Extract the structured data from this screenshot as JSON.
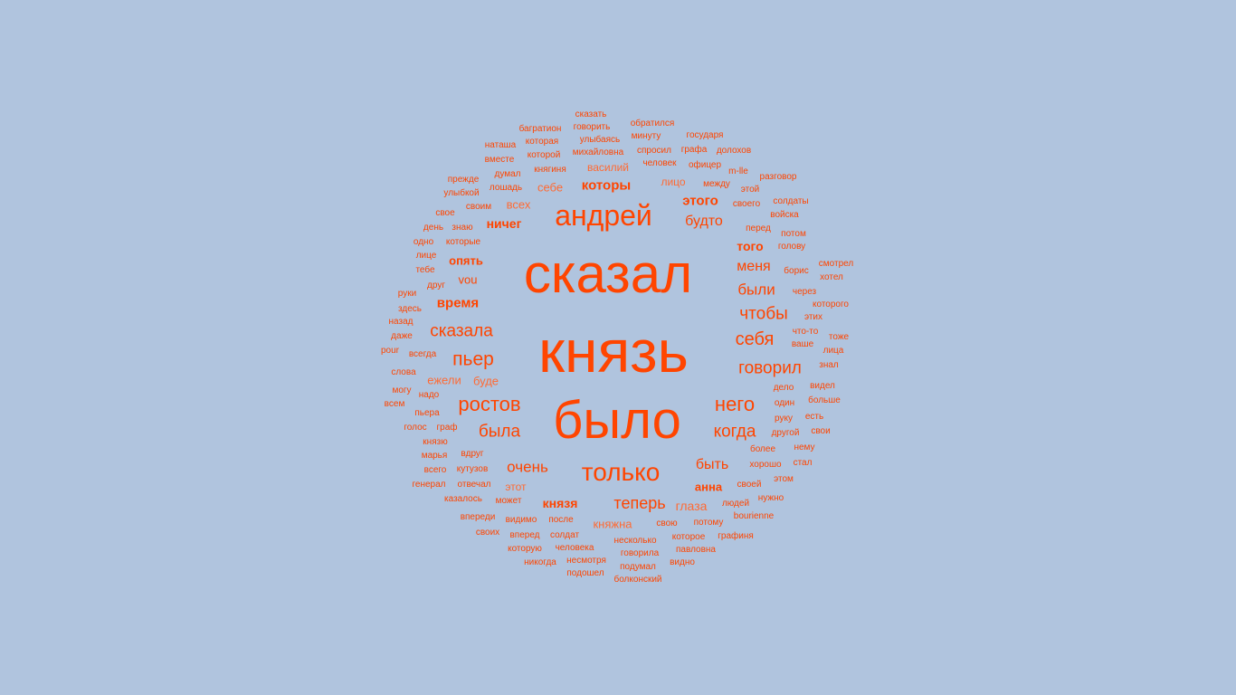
{
  "palette": {
    "background": "#b0c4de",
    "word_strong": "#ff4500",
    "word_light": "#ff6a33"
  },
  "words": [
    "сказал",
    "князь",
    "было",
    "андрей",
    "только",
    "сказала",
    "ростов",
    "пьер",
    "говорил",
    "себя",
    "него",
    "когда",
    "чтобы",
    "теперь",
    "была",
    "очень",
    "были",
    "меня",
    "быть",
    "будто",
    "которы",
    "ничег",
    "время",
    "опять",
    "того",
    "этого",
    "княжна",
    "князя",
    "анна",
    "глаза",
    "всех",
    "себе",
    "лицо",
    "vou",
    "ежели",
    "буде",
    "этот",
    "василий",
    "сказать",
    "говорить",
    "обратился",
    "минуту",
    "государя",
    "багратион",
    "которая",
    "улыбаясь",
    "наташа",
    "которой",
    "михайловна",
    "спросил",
    "графа",
    "долохов",
    "вместе",
    "человек",
    "офицер",
    "думал",
    "княгиня",
    "m-lle",
    "разговор",
    "прежде",
    "лошадь",
    "между",
    "этой",
    "улыбкой",
    "своим",
    "своего",
    "солдаты",
    "свое",
    "войска",
    "день",
    "знаю",
    "перед",
    "потом",
    "одно",
    "которые",
    "голову",
    "лице",
    "смотрел",
    "тебе",
    "борис",
    "хотел",
    "друг",
    "через",
    "руки",
    "которого",
    "здесь",
    "этих",
    "назад",
    "что-то",
    "даже",
    "тоже",
    "ваше",
    "pour",
    "всегда",
    "лица",
    "слова",
    "знал",
    "дело",
    "видел",
    "могу",
    "надо",
    "один",
    "больше",
    "всем",
    "руку",
    "есть",
    "пьера",
    "голос",
    "граф",
    "другой",
    "свои",
    "князю",
    "более",
    "нему",
    "марья",
    "вдруг",
    "хорошо",
    "стал",
    "всего",
    "кутузов",
    "этом",
    "генерал",
    "отвечал",
    "своей",
    "людей",
    "нужно",
    "казалось",
    "может",
    "впереди",
    "видимо",
    "после",
    "свою",
    "потому",
    "bourienne",
    "своих",
    "вперед",
    "солдат",
    "которое",
    "графиня",
    "несколько",
    "которую",
    "человека",
    "говорила",
    "павловна",
    "никогда",
    "несмотря",
    "видно",
    "подошел",
    "подумал",
    "болконский"
  ]
}
